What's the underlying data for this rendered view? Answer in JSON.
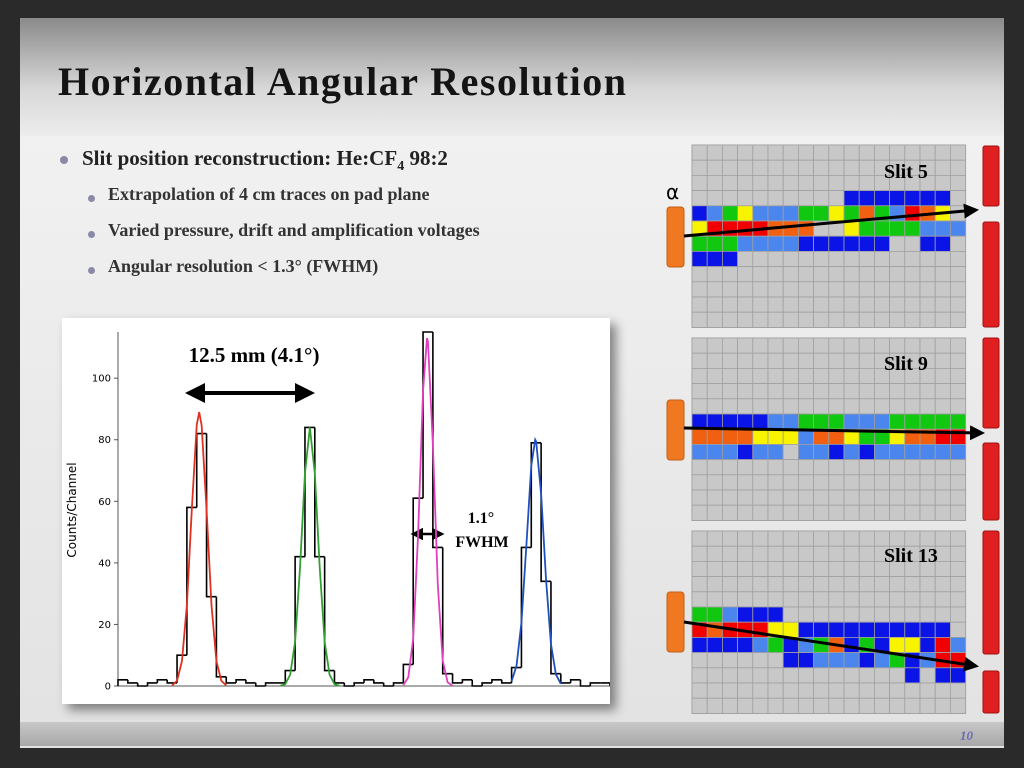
{
  "header": {
    "title": "Horizontal Angular Resolution"
  },
  "bullets": [
    {
      "text": "Slit position reconstruction: He:CF",
      "subscript": "4",
      "text_after": " 98:2"
    }
  ],
  "sub_bullets": [
    "Extrapolation of 4 cm traces on pad plane",
    "Varied pressure, drift and amplification voltages",
    "Angular resolution < 1.3° (FWHM)"
  ],
  "chart_data": {
    "type": "histogram",
    "ylabel": "Counts/Channel",
    "xlim": [
      0,
      100
    ],
    "ylim": [
      0,
      115
    ],
    "yticks": [
      0,
      20,
      40,
      60,
      80,
      100
    ],
    "color": "#000000",
    "bins": [
      0,
      2,
      4,
      6,
      8,
      10,
      12,
      14,
      16,
      18,
      20,
      22,
      24,
      26,
      28,
      30,
      32,
      34,
      36,
      38,
      40,
      42,
      44,
      46,
      48,
      50,
      52,
      54,
      56,
      58,
      60,
      62,
      64,
      66,
      68,
      70,
      72,
      74,
      76,
      78,
      80,
      82,
      84,
      86,
      88,
      90,
      92,
      94,
      96,
      98,
      100
    ],
    "counts": [
      2,
      1,
      0,
      1,
      2,
      1,
      10,
      58,
      82,
      29,
      3,
      1,
      2,
      1,
      0,
      1,
      1,
      5,
      42,
      84,
      42,
      5,
      1,
      0,
      1,
      2,
      1,
      0,
      1,
      7,
      61,
      115,
      45,
      4,
      1,
      2,
      0,
      1,
      2,
      1,
      6,
      45,
      79,
      34,
      4,
      1,
      2,
      0,
      1,
      1
    ],
    "series": [
      {
        "color": "#e03020",
        "x": [
          11,
          12,
          13,
          14,
          15,
          16,
          16.5,
          17,
          18,
          19,
          20,
          21,
          22
        ],
        "values": [
          0.2,
          1.7,
          8.1,
          26.3,
          57.3,
          84.7,
          89,
          84.7,
          57.3,
          26.3,
          8.1,
          1.7,
          0.2
        ]
      },
      {
        "color": "#30a030",
        "x": [
          33,
          34,
          35,
          36,
          37,
          38,
          39,
          40,
          41,
          42,
          43,
          44,
          45
        ],
        "values": [
          0.1,
          0.6,
          3.7,
          14.4,
          38.5,
          69.1,
          84,
          69.1,
          38.5,
          14.4,
          3.7,
          0.6,
          0.1
        ]
      },
      {
        "color": "#e040c0",
        "x": [
          58,
          59,
          60,
          61,
          62,
          62.8,
          63,
          64,
          65,
          66,
          67,
          68
        ],
        "values": [
          0.3,
          2.8,
          15.3,
          49.4,
          95.9,
          113,
          111.9,
          78.3,
          32.9,
          8.2,
          1.2,
          0.1
        ]
      },
      {
        "color": "#2050c0",
        "x": [
          80,
          81,
          82,
          83,
          84,
          84.8,
          85,
          86,
          87,
          88,
          89,
          90
        ],
        "values": [
          1.5,
          6.6,
          20.6,
          45.6,
          71.6,
          80,
          79.4,
          62.4,
          34.6,
          13.6,
          3.8,
          0.7
        ]
      }
    ],
    "annotations": [
      "12.5 mm (4.1°)",
      "1.1°",
      "FWHM"
    ]
  },
  "pads": {
    "alpha": "α",
    "slits": [
      "Slit 5",
      "Slit 9",
      "Slit 13"
    ]
  },
  "footer": {
    "page": "10"
  }
}
